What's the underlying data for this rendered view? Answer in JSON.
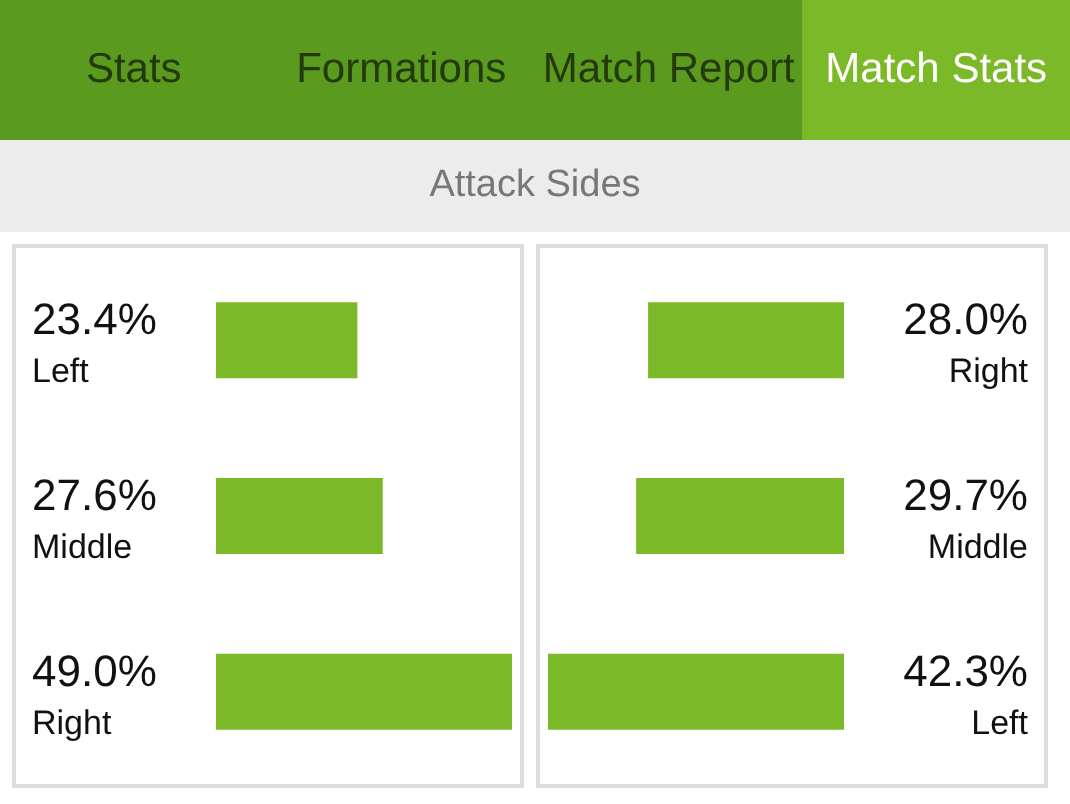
{
  "chart_data": [
    {
      "type": "bar",
      "orientation": "horizontal",
      "title": "Attack Sides",
      "annotations": [
        "Stats",
        "Formations",
        "Match Report",
        "Match Stats"
      ],
      "categories": [
        "Left",
        "Middle",
        "Right"
      ],
      "values": [
        23.4,
        27.6,
        49.0
      ],
      "value_labels": [
        "23.4%",
        "27.6%",
        "49.0%"
      ],
      "color": "#7cb928"
    },
    {
      "type": "bar",
      "orientation": "horizontal",
      "categories": [
        "Right",
        "Middle",
        "Left"
      ],
      "values": [
        28.0,
        29.7,
        42.3
      ],
      "value_labels": [
        "28.0%",
        "29.7%",
        "42.3%"
      ],
      "color": "#7cb928"
    }
  ]
}
